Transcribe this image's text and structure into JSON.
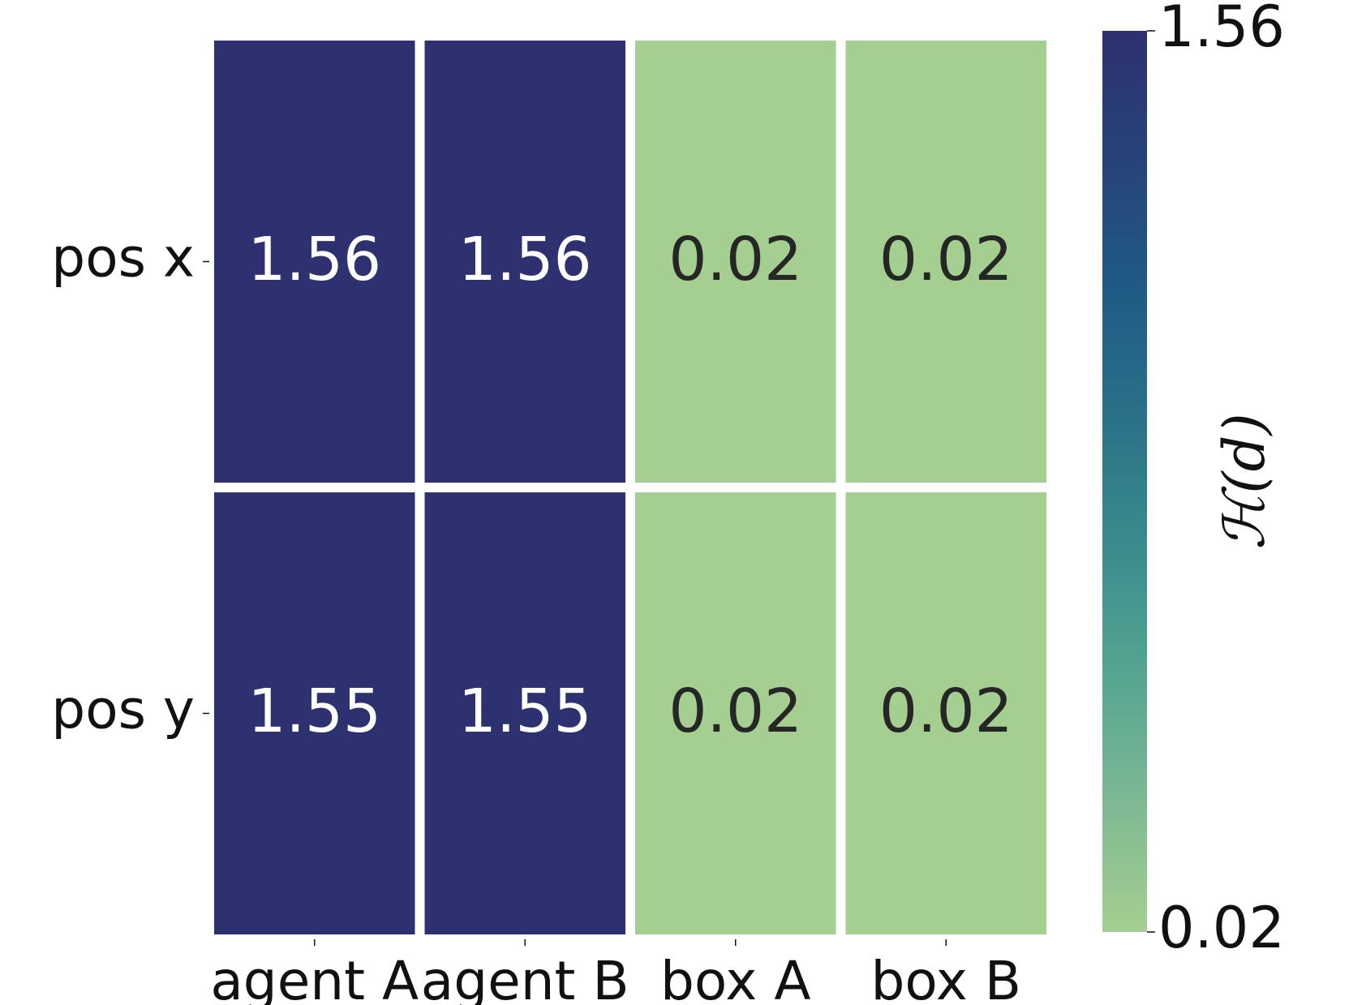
{
  "chart_data": {
    "type": "heatmap",
    "rows": [
      "pos x",
      "pos y"
    ],
    "columns": [
      "agent A",
      "agent B",
      "box A",
      "box B"
    ],
    "values": [
      [
        1.56,
        1.56,
        0.02,
        0.02
      ],
      [
        1.55,
        1.55,
        0.02,
        0.02
      ]
    ],
    "value_labels": [
      [
        "1.56",
        "1.56",
        "0.02",
        "0.02"
      ],
      [
        "1.55",
        "1.55",
        "0.02",
        "0.02"
      ]
    ],
    "colorbar": {
      "min": 0.02,
      "max": 1.56,
      "min_label": "0.02",
      "max_label": "1.56",
      "label": "ℋ(d)",
      "colors": [
        "#a5cf90",
        "#7eb994",
        "#55a591",
        "#3a8c8d",
        "#2a7189",
        "#1f5b86",
        "#27437a",
        "#2e3070"
      ]
    },
    "grid": false,
    "text_dark": "#262626",
    "text_light": "#ffffff"
  }
}
